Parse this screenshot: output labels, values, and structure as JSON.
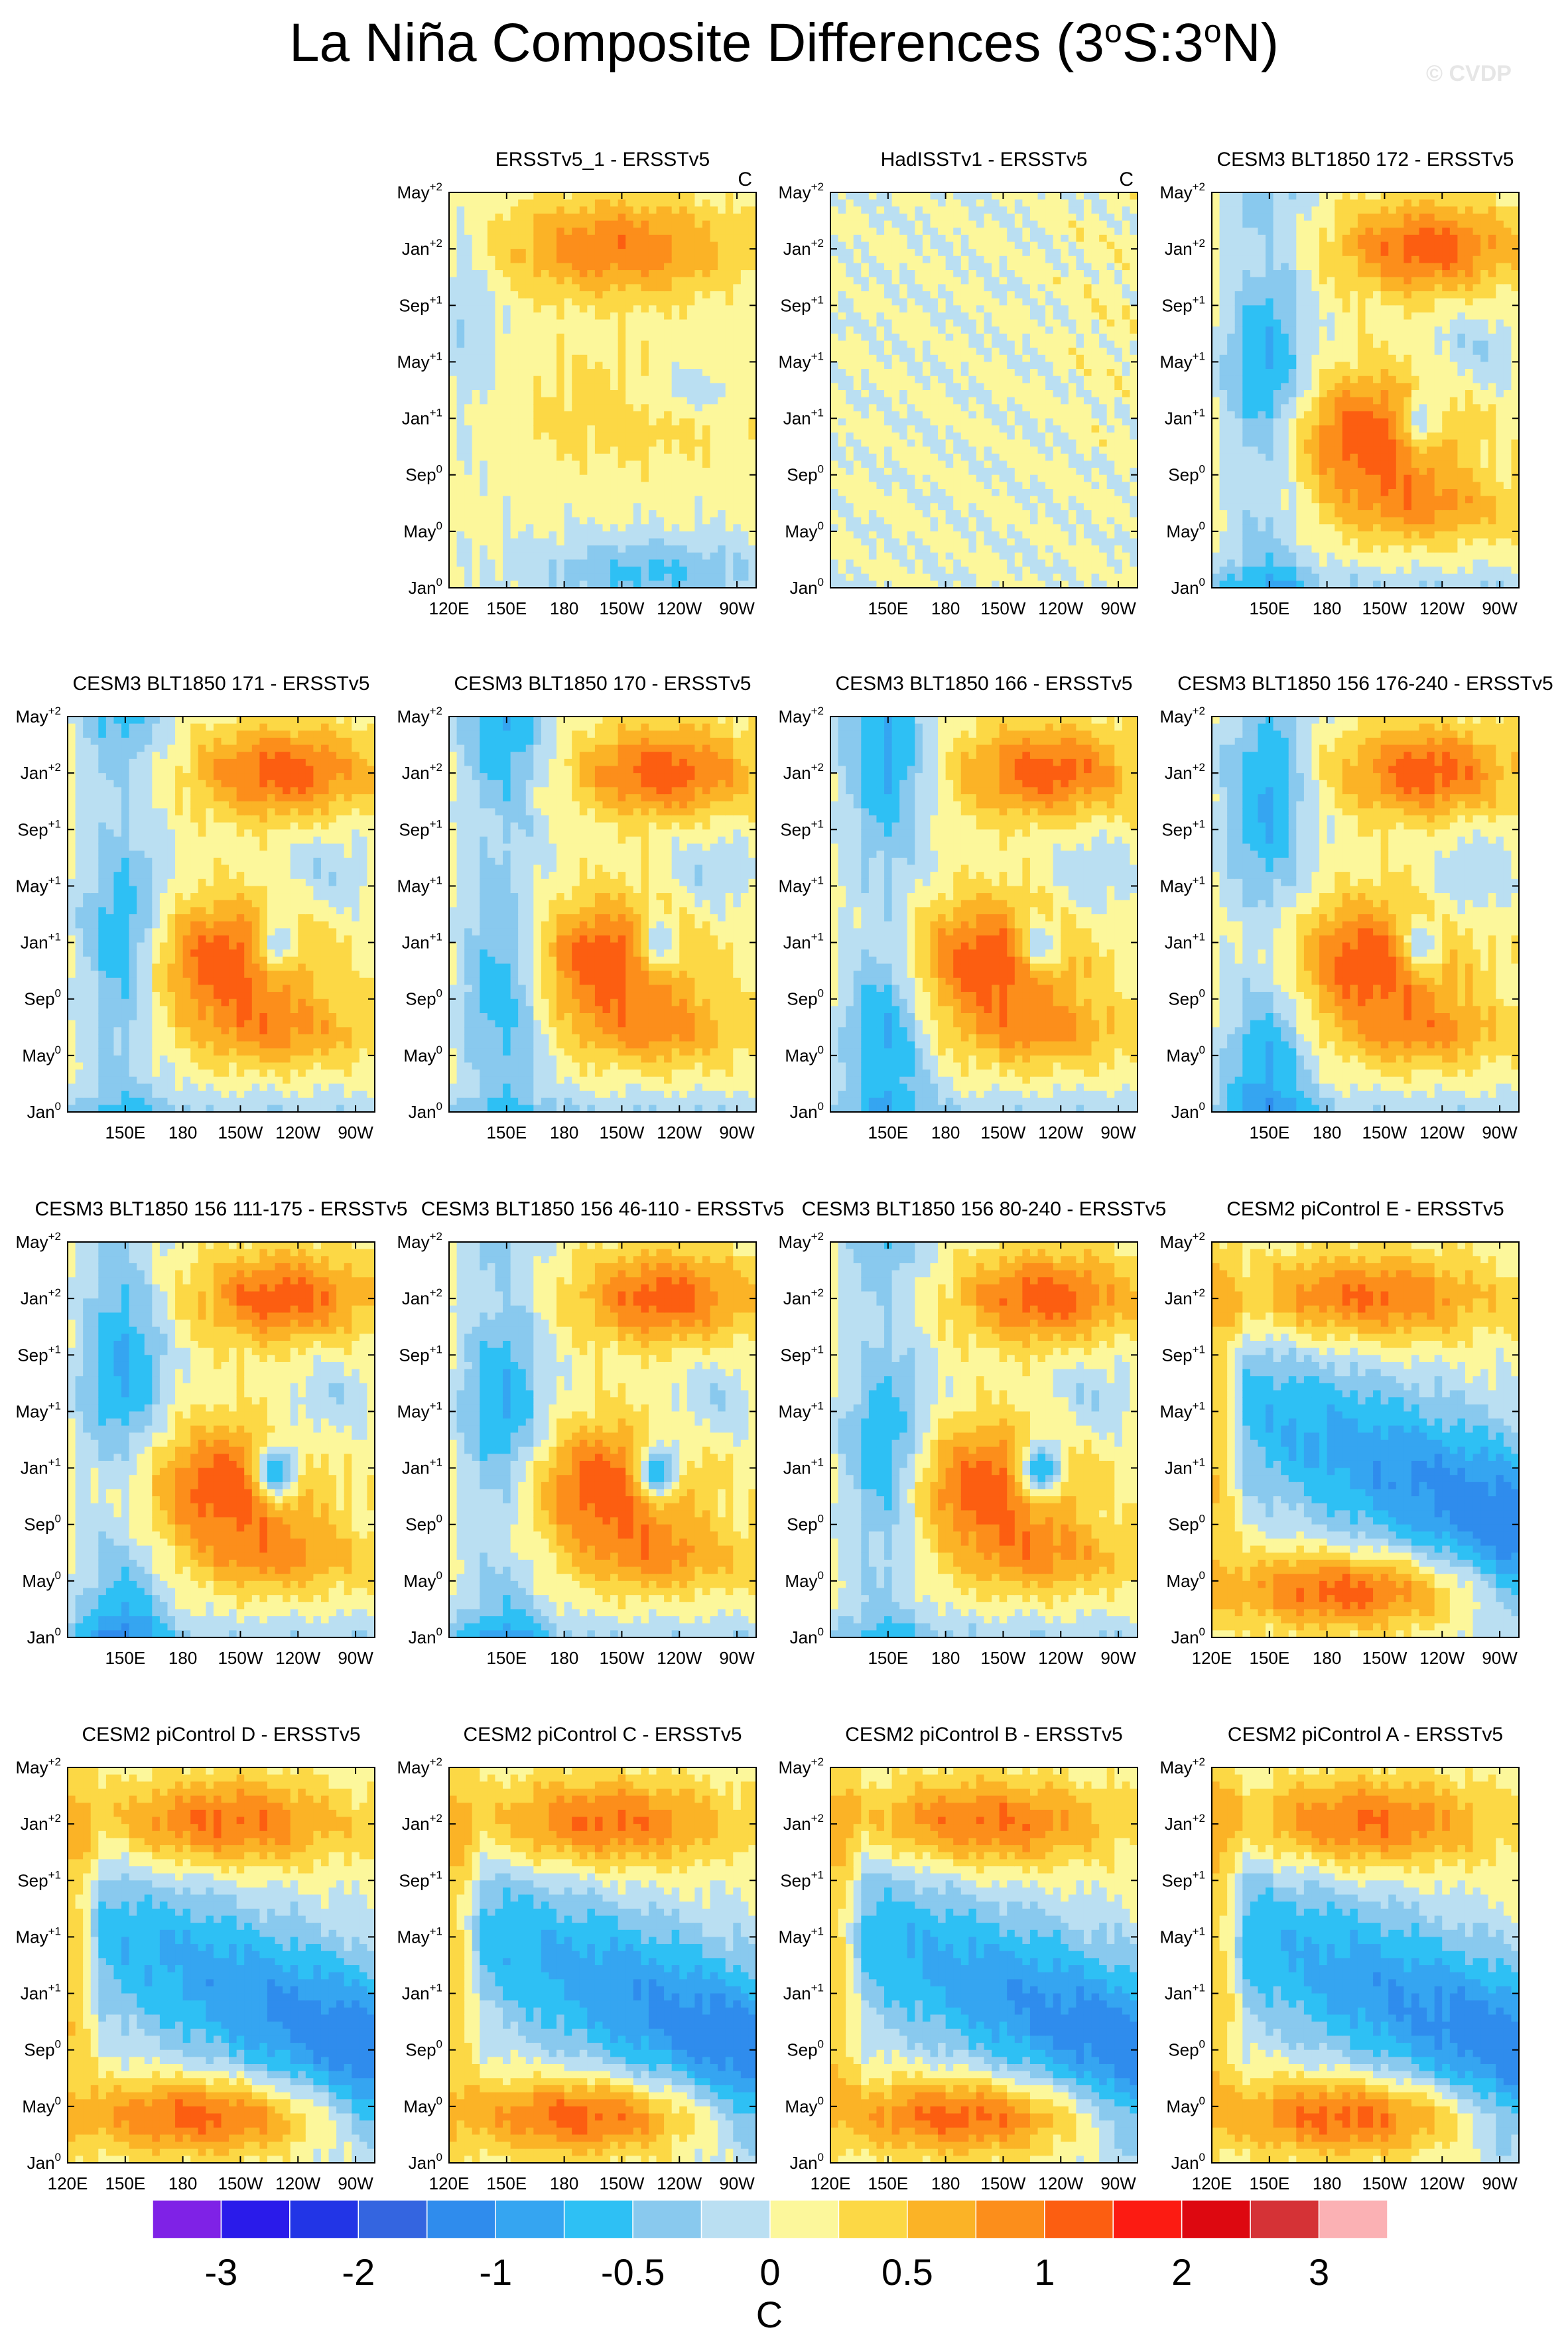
{
  "title": "La Niña Composite Differences (3°S:3°N)",
  "title_parts": {
    "a": "La Niña Composite Differences (3",
    "sup1": "o",
    "b": "S:3",
    "sup2": "o",
    "c": "N)"
  },
  "watermark": "© CVDP",
  "colors": [
    "#7f22e6",
    "#2a1bea",
    "#2235e6",
    "#3465e0",
    "#2f8ced",
    "#35a5f1",
    "#2ec0f4",
    "#89c9ee",
    "#badff2",
    "#fcf79b",
    "#fcd845",
    "#fbb326",
    "#fc8e1b",
    "#fc5e11",
    "#fc1b12",
    "#dd0810",
    "#d53236",
    "#fbb1b4"
  ],
  "chart_data": {
    "type": "heatmap",
    "description_units": "C",
    "colorbar": {
      "levels": [
        -3,
        -2.5,
        -2,
        -1.5,
        -1,
        -0.75,
        -0.5,
        -0.25,
        0,
        0.25,
        0.5,
        0.75,
        1,
        1.5,
        2,
        2.5,
        3
      ],
      "tick_labels": [
        "-3",
        "-2",
        "-1",
        "-0.5",
        "0",
        "0.5",
        "1",
        "2",
        "3"
      ],
      "unit_label": "C"
    },
    "y_ticks": [
      {
        "base": "May",
        "sup": "+2"
      },
      {
        "base": "Jan",
        "sup": "+2"
      },
      {
        "base": "Sep",
        "sup": "+1"
      },
      {
        "base": "May",
        "sup": "+1"
      },
      {
        "base": "Jan",
        "sup": "+1"
      },
      {
        "base": "Sep",
        "sup": "0"
      },
      {
        "base": "May",
        "sup": "0"
      },
      {
        "base": "Jan",
        "sup": "0"
      }
    ],
    "x_range_lon": [
      120,
      280
    ],
    "x_ticks": [
      {
        "label": "120E",
        "lon": 120
      },
      {
        "label": "150E",
        "lon": 150
      },
      {
        "label": "180",
        "lon": 180
      },
      {
        "label": "150W",
        "lon": 210
      },
      {
        "label": "120W",
        "lon": 240
      },
      {
        "label": "90W",
        "lon": 270
      }
    ],
    "y_range_months": [
      0,
      28
    ],
    "panels": [
      {
        "title": "ERSSTv5_1 - ERSSTv5",
        "unit": "C",
        "show_x_from": 0,
        "mode": "reference"
      },
      {
        "title": "HadISSTv1 - ERSSTv5",
        "unit": "C",
        "show_x_from": 1,
        "mode": "noise"
      },
      {
        "title": "CESM3 BLT1850 172 - ERSSTv5",
        "show_x_from": 1,
        "mode": "cesm3",
        "seed": 3
      },
      {
        "title": "CESM3 BLT1850 171 - ERSSTv5",
        "show_x_from": 1,
        "mode": "cesm3",
        "seed": 4
      },
      {
        "title": "CESM3 BLT1850 170 - ERSSTv5",
        "show_x_from": 1,
        "mode": "cesm3",
        "seed": 5
      },
      {
        "title": "CESM3 BLT1850 166 - ERSSTv5",
        "show_x_from": 1,
        "mode": "cesm3",
        "seed": 6
      },
      {
        "title": "CESM3 BLT1850 156 176-240 - ERSSTv5",
        "show_x_from": 1,
        "mode": "cesm3",
        "seed": 7
      },
      {
        "title": "CESM3 BLT1850 156 111-175 - ERSSTv5",
        "show_x_from": 1,
        "mode": "cesm3b",
        "seed": 8
      },
      {
        "title": "CESM3 BLT1850 156 46-110 - ERSSTv5",
        "show_x_from": 1,
        "mode": "cesm3b",
        "seed": 9
      },
      {
        "title": "CESM3 BLT1850 156 80-240 - ERSSTv5",
        "show_x_from": 1,
        "mode": "cesm3b",
        "seed": 10
      },
      {
        "title": "CESM2 piControl E - ERSSTv5",
        "show_x_from": 0,
        "mode": "cesm2",
        "seed": 11
      },
      {
        "title": "CESM2 piControl D - ERSSTv5",
        "show_x_from": 0,
        "mode": "cesm2",
        "seed": 12
      },
      {
        "title": "CESM2 piControl C - ERSSTv5",
        "show_x_from": 0,
        "mode": "cesm2",
        "seed": 13
      },
      {
        "title": "CESM2 piControl B - ERSSTv5",
        "show_x_from": 0,
        "mode": "cesm2",
        "seed": 14
      },
      {
        "title": "CESM2 piControl A - ERSSTv5",
        "show_x_from": 0,
        "mode": "cesm2",
        "seed": 15
      }
    ]
  }
}
